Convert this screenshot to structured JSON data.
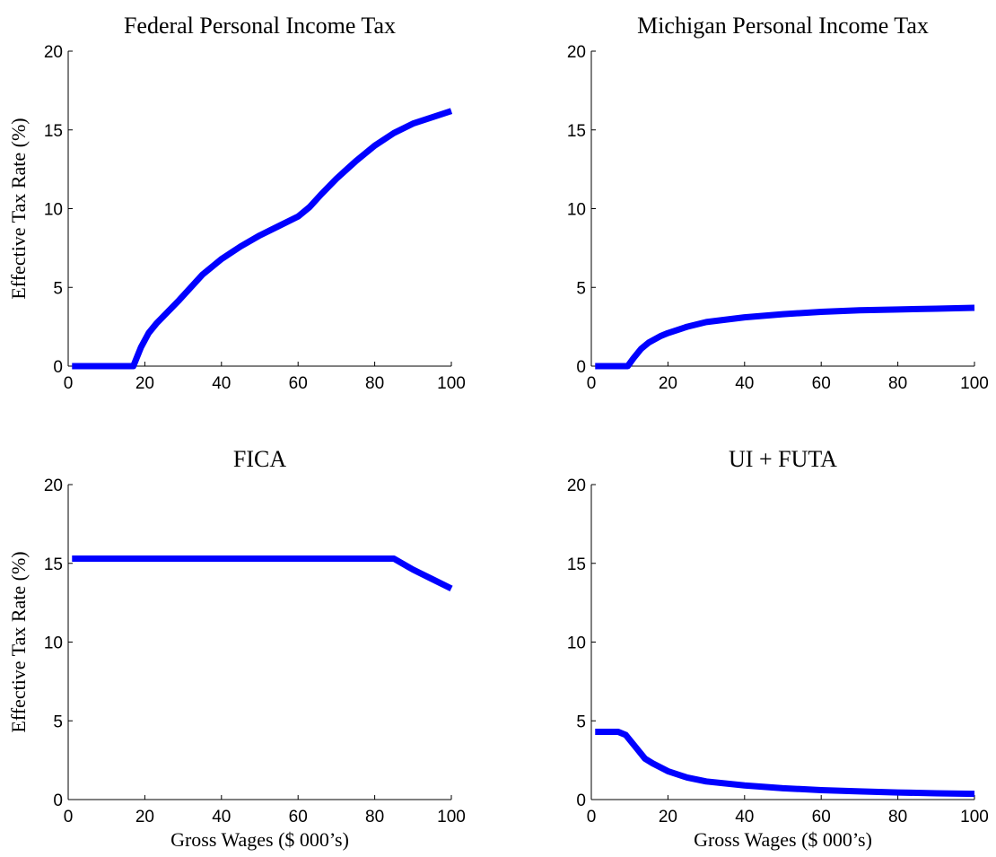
{
  "chart_data": [
    {
      "type": "line",
      "title": "Federal Personal Income Tax",
      "ylabel": "Effective Tax Rate (%)",
      "x": [
        1,
        17,
        19,
        21,
        23,
        25,
        27,
        29,
        32,
        35,
        40,
        45,
        50,
        55,
        60,
        63,
        66,
        70,
        75,
        80,
        85,
        90,
        95,
        100
      ],
      "series": [
        {
          "color": "#0000ff",
          "values": [
            0,
            0,
            1.2,
            2.1,
            2.7,
            3.2,
            3.7,
            4.2,
            5.0,
            5.8,
            6.8,
            7.6,
            8.3,
            8.9,
            9.5,
            10.1,
            10.9,
            11.9,
            13.0,
            14.0,
            14.8,
            15.4,
            15.8,
            16.2
          ]
        }
      ],
      "xlim": [
        0,
        100
      ],
      "xticks": [
        0,
        20,
        40,
        60,
        80,
        100
      ],
      "ylim": [
        0,
        20
      ],
      "yticks": [
        0,
        5,
        10,
        15,
        20
      ]
    },
    {
      "type": "line",
      "title": "Michigan Personal Income Tax",
      "x": [
        1,
        9.5,
        11,
        13,
        15,
        18,
        20,
        25,
        30,
        40,
        50,
        60,
        70,
        80,
        90,
        100
      ],
      "series": [
        {
          "color": "#0000ff",
          "values": [
            0,
            0,
            0.5,
            1.1,
            1.5,
            1.9,
            2.1,
            2.5,
            2.8,
            3.1,
            3.3,
            3.45,
            3.55,
            3.6,
            3.65,
            3.7
          ]
        }
      ],
      "xlim": [
        0,
        100
      ],
      "xticks": [
        0,
        20,
        40,
        60,
        80,
        100
      ],
      "ylim": [
        0,
        20
      ],
      "yticks": [
        0,
        5,
        10,
        15,
        20
      ]
    },
    {
      "type": "line",
      "title": "FICA",
      "ylabel": "Effective Tax Rate (%)",
      "xlabel": "Gross Wages ($ 000’s)",
      "x": [
        1,
        85,
        90,
        95,
        100
      ],
      "series": [
        {
          "color": "#0000ff",
          "values": [
            15.3,
            15.3,
            14.6,
            14.0,
            13.4
          ]
        }
      ],
      "xlim": [
        0,
        100
      ],
      "xticks": [
        0,
        20,
        40,
        60,
        80,
        100
      ],
      "ylim": [
        0,
        20
      ],
      "yticks": [
        0,
        5,
        10,
        15,
        20
      ]
    },
    {
      "type": "line",
      "title": "UI + FUTA",
      "xlabel": "Gross Wages ($ 000’s)",
      "x": [
        1,
        7,
        9,
        10,
        12,
        14,
        16,
        20,
        25,
        30,
        40,
        50,
        60,
        70,
        80,
        90,
        100
      ],
      "series": [
        {
          "color": "#0000ff",
          "values": [
            4.3,
            4.3,
            4.1,
            3.8,
            3.2,
            2.6,
            2.3,
            1.8,
            1.4,
            1.15,
            0.9,
            0.72,
            0.6,
            0.52,
            0.45,
            0.4,
            0.36
          ]
        }
      ],
      "xlim": [
        0,
        100
      ],
      "xticks": [
        0,
        20,
        40,
        60,
        80,
        100
      ],
      "ylim": [
        0,
        20
      ],
      "yticks": [
        0,
        5,
        10,
        15,
        20
      ]
    }
  ]
}
